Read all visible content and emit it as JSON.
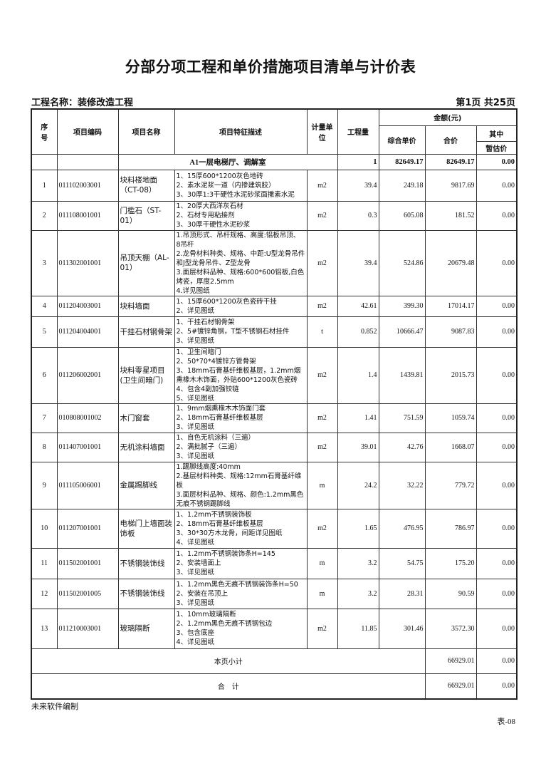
{
  "title": "分部分项工程和单价措施项目清单与计价表",
  "project_name": "工程名称：装修改造工程",
  "page_info": "第1页  共25页",
  "headers": {
    "seq": "序号",
    "code": "项目编码",
    "name": "项目名称",
    "desc": "项目特征描述",
    "unit": "计量单位",
    "qty": "工程量",
    "amount": "金额(元)",
    "unit_price": "综合单价",
    "total": "合价",
    "of_which": "其中",
    "provisional": "暂估价"
  },
  "section": {
    "name": "A1一层电梯厅、调解室",
    "qty": "1",
    "unit_price": "82649.17",
    "total": "82649.17",
    "provisional": "0.00"
  },
  "rows": [
    {
      "seq": "1",
      "code": "011102003001",
      "name": "块料楼地面（CT-08）",
      "desc": "1、15厚600*1200灰色地砖\n2、素水泥浆一道（内掺建筑胶）\n3、30厚1:3干硬性水泥砂浆面撒素水泥",
      "unit": "m2",
      "qty": "39.4",
      "unit_price": "249.18",
      "total": "9817.69",
      "provisional": "0.00"
    },
    {
      "seq": "2",
      "code": "011108001001",
      "name": "门槛石（ST-01）",
      "desc": "1、20厚大西洋灰石材\n2、石材专用粘接剂\n3、30厚干硬性水泥砂浆",
      "unit": "m2",
      "qty": "0.3",
      "unit_price": "605.08",
      "total": "181.52",
      "provisional": "0.00"
    },
    {
      "seq": "3",
      "code": "011302001001",
      "name": "吊顶天棚（AL-01）",
      "desc": "1.吊顶形式、吊杆规格、高度:铝板吊顶、  8吊杆\n2.龙骨材料种类、规格、中距:U型龙骨吊件和J型龙骨吊件、Z型龙骨\n3.面层材料品种、规格:600*600铝板,白色烤瓷，厚度2.5mm\n4.详见图纸",
      "unit": "m2",
      "qty": "39.4",
      "unit_price": "524.86",
      "total": "20679.48",
      "provisional": "0.00"
    },
    {
      "seq": "4",
      "code": "011204003001",
      "name": "块料墙面",
      "desc": "1、15厚600*1200灰色瓷砖干挂\n2、详见图纸",
      "unit": "m2",
      "qty": "42.61",
      "unit_price": "399.30",
      "total": "17014.17",
      "provisional": "0.00"
    },
    {
      "seq": "5",
      "code": "011204004001",
      "name": "干挂石材钢骨架",
      "desc": "1、干挂石材钢骨架\n2、5#镀锌角钢，T型不锈钢石材挂件\n3、详见图纸",
      "unit": "t",
      "qty": "0.852",
      "unit_price": "10666.47",
      "total": "9087.83",
      "provisional": "0.00"
    },
    {
      "seq": "6",
      "code": "011206002001",
      "name": "块料零星项目(卫生间暗门)",
      "desc": "1、卫生间暗门\n2、50*70*4镀锌方管骨架\n3、18mm石膏基纤维板基层，1.2mm烟熏橡木木饰面，外贴600*1200灰色瓷砖\n4、包含4副加强铰链\n5、详见图纸",
      "unit": "m2",
      "qty": "1.4",
      "unit_price": "1439.81",
      "total": "2015.73",
      "provisional": "0.00"
    },
    {
      "seq": "7",
      "code": "010808001002",
      "name": "木门窗套",
      "desc": "1、9mm烟熏橡木木饰面门套\n2、18mm石膏基纤维板基层\n3、详见图纸",
      "unit": "m2",
      "qty": "1.41",
      "unit_price": "751.59",
      "total": "1059.74",
      "provisional": "0.00"
    },
    {
      "seq": "8",
      "code": "011407001001",
      "name": "无机涂料墙面",
      "desc": "1、自色无机涂料（三遍）\n2、满批腻子（三遍）\n3、详见图纸",
      "unit": "m2",
      "qty": "39.01",
      "unit_price": "42.76",
      "total": "1668.07",
      "provisional": "0.00"
    },
    {
      "seq": "9",
      "code": "011105006001",
      "name": "金属踢脚线",
      "desc": "1.踢脚线高度:40mm\n2.基层材料种类、规格:12mm石膏基纤维板\n3.面层材料品种、规格、颜色:1.2mm黑色无痕不锈钢踢脚线",
      "unit": "m",
      "qty": "24.2",
      "unit_price": "32.22",
      "total": "779.72",
      "provisional": "0.00"
    },
    {
      "seq": "10",
      "code": "011207001001",
      "name": "电梯门上墙面装饰板",
      "desc": "1、1.2mm不锈钢装饰板\n2、18mm石膏基纤维板基层\n3、30*30方木龙骨，间距详见图纸\n4、详见图纸",
      "unit": "m2",
      "qty": "1.65",
      "unit_price": "476.95",
      "total": "786.97",
      "provisional": "0.00"
    },
    {
      "seq": "11",
      "code": "011502001001",
      "name": "不锈钢装饰线",
      "desc": "1、1.2mm不锈钢装饰条H=145\n2、安装墙面上\n3、详见图纸",
      "unit": "m",
      "qty": "3.2",
      "unit_price": "54.75",
      "total": "175.20",
      "provisional": "0.00"
    },
    {
      "seq": "12",
      "code": "011502001005",
      "name": "不锈钢装饰线",
      "desc": "1、1.2mm黑色无痕不锈钢装饰条H=50\n2、安装在吊顶上\n3、详见图纸",
      "unit": "m",
      "qty": "3.2",
      "unit_price": "28.31",
      "total": "90.59",
      "provisional": "0.00"
    },
    {
      "seq": "13",
      "code": "011210003001",
      "name": "玻璃隔断",
      "desc": "1、10mm玻璃隔断\n2、1.2mm黑色无痕不锈钢包边\n3、包含底座\n4、详见图纸",
      "unit": "m2",
      "qty": "11.85",
      "unit_price": "301.46",
      "total": "3572.30",
      "provisional": "0.00"
    }
  ],
  "subtotal": {
    "label": "本页小计",
    "total": "66929.01",
    "provisional": "0.00"
  },
  "grand_total": {
    "label": "合    计",
    "total": "66929.01",
    "provisional": "0.00"
  },
  "footer": "未来软件编制",
  "table_no": "表-08"
}
